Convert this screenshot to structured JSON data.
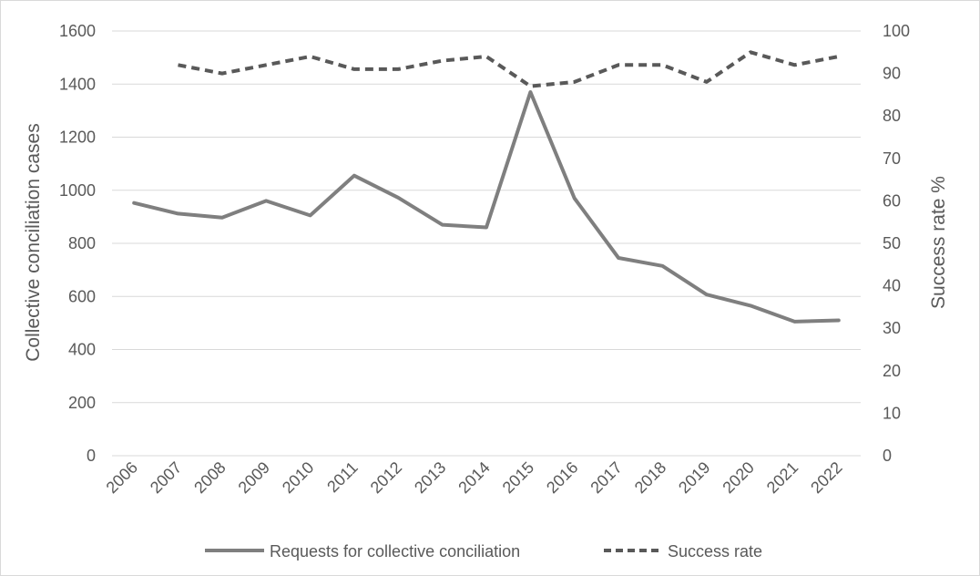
{
  "chart_data": {
    "type": "line",
    "title": "",
    "categories": [
      "2006",
      "2007",
      "2008",
      "2009",
      "2010",
      "2011",
      "2012",
      "2013",
      "2014",
      "2015",
      "2016",
      "2017",
      "2018",
      "2019",
      "2020",
      "2021",
      "2022"
    ],
    "ylabel_left": "Collective conciliation cases",
    "ylabel_right": "Success rate %",
    "ylim_left": [
      0,
      1600
    ],
    "ylim_right": [
      0,
      100
    ],
    "yticks_left": [
      0,
      200,
      400,
      600,
      800,
      1000,
      1200,
      1400,
      1600
    ],
    "yticks_right": [
      0,
      10,
      20,
      30,
      40,
      50,
      60,
      70,
      80,
      90,
      100
    ],
    "grid": true,
    "legend_position": "bottom",
    "series": [
      {
        "name": "Requests for collective conciliation",
        "axis": "left",
        "style": "solid",
        "color": "#7f7f7f",
        "values": [
          952,
          912,
          897,
          960,
          905,
          1055,
          972,
          870,
          860,
          1370,
          970,
          745,
          715,
          607,
          565,
          505,
          510
        ]
      },
      {
        "name": "Success rate",
        "axis": "right",
        "style": "dashed",
        "color": "#595959",
        "values": [
          null,
          92,
          90,
          92,
          94,
          91,
          91,
          93,
          94,
          87,
          88,
          92,
          92,
          88,
          95,
          92,
          94
        ]
      }
    ]
  }
}
